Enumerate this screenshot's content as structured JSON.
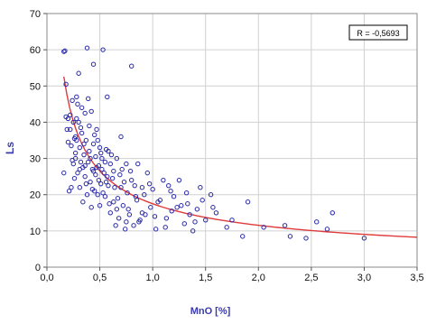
{
  "chart_data": {
    "type": "scatter",
    "title": "",
    "xlabel": "MnO [%]",
    "ylabel": "Ls",
    "xlim": [
      0.0,
      3.5
    ],
    "ylim": [
      0,
      70
    ],
    "xticks": [
      0.0,
      0.5,
      1.0,
      1.5,
      2.0,
      2.5,
      3.0,
      3.5
    ],
    "xtick_labels": [
      "0,0",
      "0,5",
      "1,0",
      "1,5",
      "2,0",
      "2,5",
      "3,0",
      "3,5"
    ],
    "yticks": [
      0,
      10,
      20,
      30,
      40,
      50,
      60,
      70
    ],
    "ytick_labels": [
      "0",
      "10",
      "20",
      "30",
      "40",
      "50",
      "60",
      "70"
    ],
    "grid": true,
    "annotation": "R = -0,5693",
    "colors": {
      "points": "#2a2aa8",
      "trend": "#e03a3a",
      "axis_labels": "#3a3ab0",
      "grid": "#d0d0d0",
      "background": "#ffffff"
    },
    "points": [
      [
        0.16,
        59.5
      ],
      [
        0.17,
        59.7
      ],
      [
        0.18,
        50.5
      ],
      [
        0.18,
        41.5
      ],
      [
        0.16,
        26.0
      ],
      [
        0.2,
        41.0
      ],
      [
        0.2,
        34.5
      ],
      [
        0.21,
        21.0
      ],
      [
        0.22,
        42.0
      ],
      [
        0.22,
        38.0
      ],
      [
        0.23,
        22.0
      ],
      [
        0.24,
        46.0
      ],
      [
        0.25,
        40.0
      ],
      [
        0.25,
        28.5
      ],
      [
        0.26,
        35.5
      ],
      [
        0.26,
        24.5
      ],
      [
        0.27,
        36.0
      ],
      [
        0.27,
        30.0
      ],
      [
        0.28,
        47.0
      ],
      [
        0.28,
        41.0
      ],
      [
        0.29,
        26.0
      ],
      [
        0.3,
        53.5
      ],
      [
        0.3,
        40.0
      ],
      [
        0.31,
        33.0
      ],
      [
        0.31,
        22.0
      ],
      [
        0.32,
        29.0
      ],
      [
        0.33,
        44.0
      ],
      [
        0.33,
        37.0
      ],
      [
        0.34,
        27.5
      ],
      [
        0.34,
        18.0
      ],
      [
        0.35,
        31.0
      ],
      [
        0.36,
        42.5
      ],
      [
        0.36,
        25.0
      ],
      [
        0.37,
        35.0
      ],
      [
        0.38,
        60.5
      ],
      [
        0.38,
        20.0
      ],
      [
        0.39,
        29.0
      ],
      [
        0.4,
        39.0
      ],
      [
        0.4,
        32.0
      ],
      [
        0.41,
        23.5
      ],
      [
        0.42,
        43.0
      ],
      [
        0.42,
        16.5
      ],
      [
        0.43,
        27.0
      ],
      [
        0.44,
        34.0
      ],
      [
        0.44,
        56.0
      ],
      [
        0.45,
        21.0
      ],
      [
        0.46,
        30.5
      ],
      [
        0.46,
        25.5
      ],
      [
        0.47,
        38.0
      ],
      [
        0.48,
        20.0
      ],
      [
        0.49,
        28.0
      ],
      [
        0.5,
        33.0
      ],
      [
        0.5,
        17.0
      ],
      [
        0.51,
        23.0
      ],
      [
        0.52,
        30.0
      ],
      [
        0.53,
        60.0
      ],
      [
        0.54,
        26.0
      ],
      [
        0.55,
        19.5
      ],
      [
        0.56,
        32.5
      ],
      [
        0.57,
        47.0
      ],
      [
        0.58,
        22.5
      ],
      [
        0.6,
        28.5
      ],
      [
        0.6,
        15.0
      ],
      [
        0.62,
        24.5
      ],
      [
        0.63,
        18.0
      ],
      [
        0.65,
        11.5
      ],
      [
        0.66,
        30.0
      ],
      [
        0.68,
        13.5
      ],
      [
        0.7,
        22.0
      ],
      [
        0.7,
        36.0
      ],
      [
        0.72,
        17.0
      ],
      [
        0.74,
        10.5
      ],
      [
        0.75,
        28.5
      ],
      [
        0.76,
        20.5
      ],
      [
        0.78,
        14.5
      ],
      [
        0.8,
        55.5
      ],
      [
        0.8,
        24.0
      ],
      [
        0.82,
        11.5
      ],
      [
        0.85,
        18.5
      ],
      [
        0.86,
        28.5
      ],
      [
        0.88,
        13.0
      ],
      [
        0.9,
        15.0
      ],
      [
        0.92,
        20.0
      ],
      [
        0.95,
        26.0
      ],
      [
        0.98,
        16.5
      ],
      [
        1.0,
        21.5
      ],
      [
        1.02,
        14.0
      ],
      [
        1.05,
        18.0
      ],
      [
        1.1,
        24.0
      ],
      [
        1.12,
        11.0
      ],
      [
        1.15,
        22.5
      ],
      [
        1.18,
        15.5
      ],
      [
        1.2,
        19.5
      ],
      [
        1.25,
        24.0
      ],
      [
        1.27,
        17.0
      ],
      [
        1.3,
        12.0
      ],
      [
        1.32,
        20.5
      ],
      [
        1.35,
        14.5
      ],
      [
        1.38,
        10.0
      ],
      [
        1.42,
        16.0
      ],
      [
        1.45,
        22.0
      ],
      [
        1.5,
        13.0
      ],
      [
        1.55,
        20.0
      ],
      [
        1.6,
        15.0
      ],
      [
        1.7,
        11.0
      ],
      [
        1.85,
        8.5
      ],
      [
        1.9,
        18.0
      ],
      [
        2.05,
        11.0
      ],
      [
        2.25,
        11.5
      ],
      [
        2.3,
        8.5
      ],
      [
        2.45,
        8.0
      ],
      [
        2.55,
        12.5
      ],
      [
        2.65,
        10.5
      ],
      [
        2.7,
        15.0
      ],
      [
        3.0,
        8.0
      ],
      [
        0.19,
        38.0
      ],
      [
        0.23,
        33.5
      ],
      [
        0.27,
        31.5
      ],
      [
        0.29,
        45.0
      ],
      [
        0.31,
        27.0
      ],
      [
        0.35,
        34.0
      ],
      [
        0.37,
        23.0
      ],
      [
        0.39,
        46.5
      ],
      [
        0.41,
        30.0
      ],
      [
        0.43,
        21.5
      ],
      [
        0.45,
        36.5
      ],
      [
        0.47,
        27.5
      ],
      [
        0.49,
        24.0
      ],
      [
        0.51,
        31.5
      ],
      [
        0.53,
        20.5
      ],
      [
        0.55,
        29.0
      ],
      [
        0.57,
        25.0
      ],
      [
        0.59,
        17.5
      ],
      [
        0.61,
        31.0
      ],
      [
        0.63,
        26.5
      ],
      [
        0.67,
        19.0
      ],
      [
        0.69,
        25.5
      ],
      [
        0.73,
        23.5
      ],
      [
        0.77,
        16.0
      ],
      [
        0.79,
        26.5
      ],
      [
        0.83,
        22.5
      ],
      [
        0.87,
        12.5
      ],
      [
        0.93,
        14.5
      ],
      [
        0.97,
        23.0
      ],
      [
        1.03,
        10.5
      ],
      [
        1.07,
        18.5
      ],
      [
        1.13,
        13.5
      ],
      [
        1.17,
        21.0
      ],
      [
        1.23,
        16.5
      ],
      [
        1.33,
        17.5
      ],
      [
        1.4,
        12.5
      ],
      [
        1.47,
        18.5
      ],
      [
        1.57,
        16.5
      ],
      [
        1.75,
        13.0
      ],
      [
        0.24,
        29.5
      ],
      [
        0.28,
        35.0
      ],
      [
        0.32,
        38.5
      ],
      [
        0.36,
        28.0
      ],
      [
        0.44,
        26.5
      ],
      [
        0.48,
        35.0
      ],
      [
        0.52,
        27.0
      ],
      [
        0.56,
        23.5
      ],
      [
        0.58,
        32.0
      ],
      [
        0.64,
        22.0
      ],
      [
        0.66,
        16.0
      ],
      [
        0.71,
        27.0
      ],
      [
        0.75,
        12.5
      ],
      [
        0.84,
        19.5
      ],
      [
        0.9,
        22.0
      ]
    ],
    "trend": {
      "type": "power",
      "coefficient": 17.5,
      "exponent": -0.6,
      "x_range": [
        0.16,
        3.5
      ]
    }
  }
}
